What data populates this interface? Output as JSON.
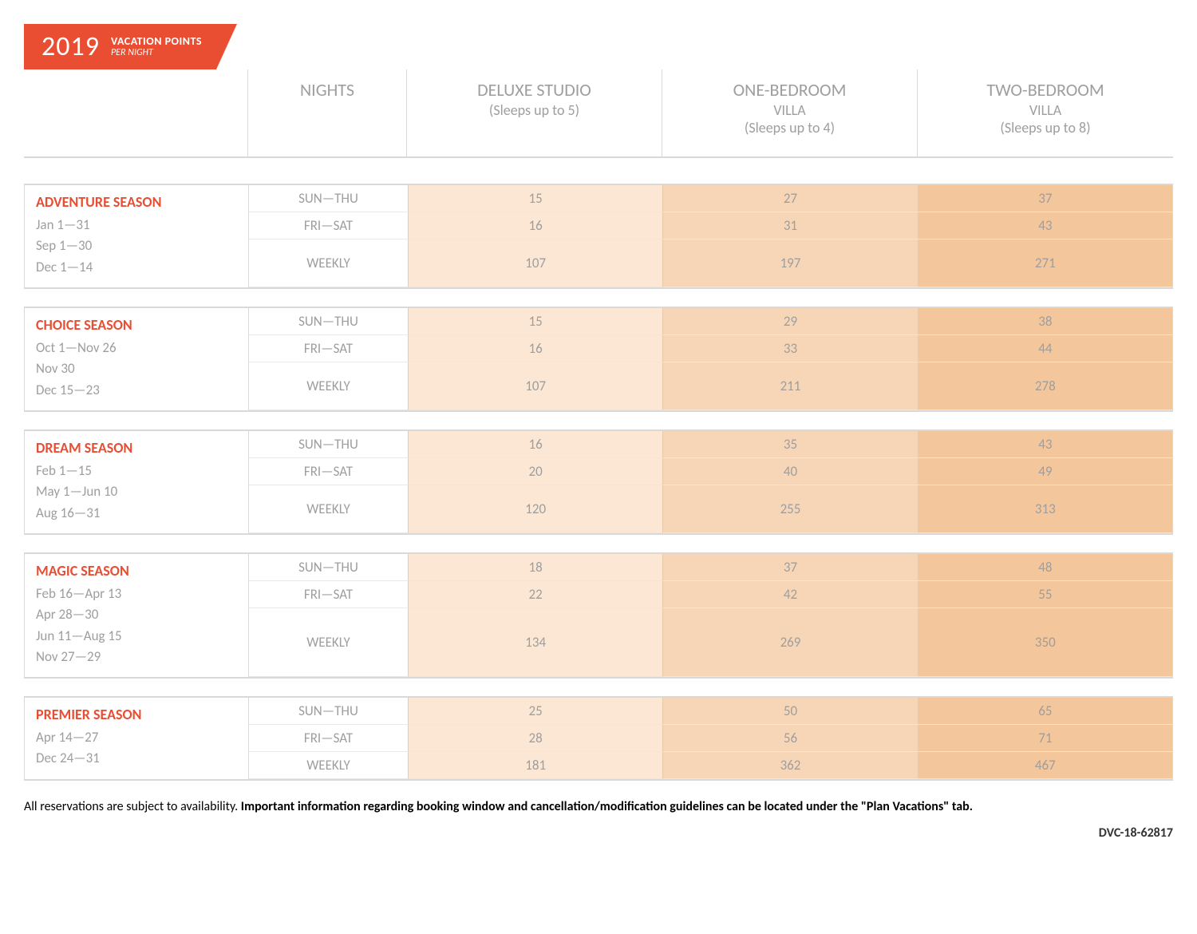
{
  "banner": {
    "year": "2019",
    "title": "VACATION POINTS",
    "subtitle": "PER NIGHT",
    "bg_color": "#e94e33"
  },
  "columns": {
    "nights": "NIGHTS",
    "rooms": [
      {
        "title": "DELUXE STUDIO",
        "sub": "",
        "sleeps": "(Sleeps up to 5)"
      },
      {
        "title": "ONE-BEDROOM",
        "sub": "VILLA",
        "sleeps": "(Sleeps up to 4)"
      },
      {
        "title": "TWO-BEDROOM",
        "sub": "VILLA",
        "sleeps": "(Sleeps up to 8)"
      }
    ]
  },
  "night_rows": [
    "SUN—THU",
    "FRI—SAT",
    "WEEKLY"
  ],
  "tint_colors": [
    "#fbe7d4",
    "#f7d6b8",
    "#f3c69c"
  ],
  "seasons": [
    {
      "name": "ADVENTURE SEASON",
      "dates": [
        "Jan 1—31",
        "Sep 1—30",
        "Dec 1—14"
      ],
      "values": [
        [
          "15",
          "27",
          "37"
        ],
        [
          "16",
          "31",
          "43"
        ],
        [
          "107",
          "197",
          "271"
        ]
      ]
    },
    {
      "name": "CHOICE SEASON",
      "dates": [
        "Oct 1—Nov 26",
        "Nov 30",
        "Dec 15—23"
      ],
      "values": [
        [
          "15",
          "29",
          "38"
        ],
        [
          "16",
          "33",
          "44"
        ],
        [
          "107",
          "211",
          "278"
        ]
      ]
    },
    {
      "name": "DREAM SEASON",
      "dates": [
        "Feb 1—15",
        "May 1—Jun 10",
        "Aug 16—31"
      ],
      "values": [
        [
          "16",
          "35",
          "43"
        ],
        [
          "20",
          "40",
          "49"
        ],
        [
          "120",
          "255",
          "313"
        ]
      ]
    },
    {
      "name": "MAGIC SEASON",
      "dates": [
        "Feb 16—Apr 13",
        "Apr 28—30",
        "Jun 11—Aug 15",
        "Nov 27—29"
      ],
      "values": [
        [
          "18",
          "37",
          "48"
        ],
        [
          "22",
          "42",
          "55"
        ],
        [
          "134",
          "269",
          "350"
        ]
      ]
    },
    {
      "name": "PREMIER SEASON",
      "dates": [
        "Apr 14—27",
        "Dec 24—31"
      ],
      "values": [
        [
          "25",
          "50",
          "65"
        ],
        [
          "28",
          "56",
          "71"
        ],
        [
          "181",
          "362",
          "467"
        ]
      ]
    }
  ],
  "footer": {
    "lead": "All reservations are subject to availability. ",
    "bold": "Important information regarding booking window and cancellation/modification guidelines can be located under the \"Plan Vacations\" tab.",
    "code": "DVC-18-62817"
  },
  "style": {
    "accent": "#e94e33",
    "grid_border": "#d9d9d9",
    "text_muted": "#9e9e9e"
  }
}
